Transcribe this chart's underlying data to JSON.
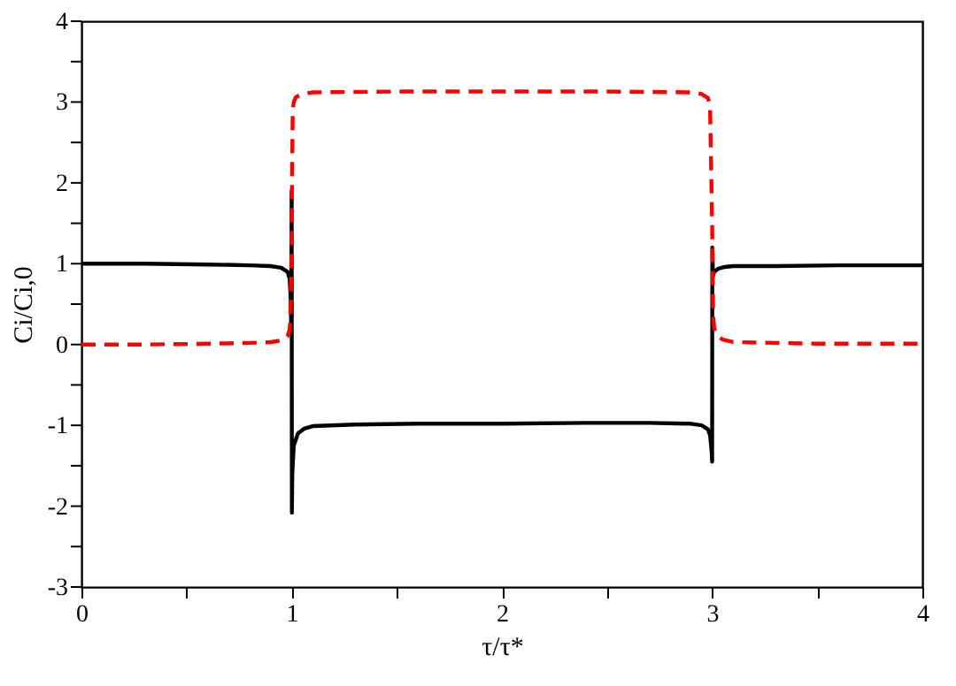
{
  "chart_data": {
    "type": "line",
    "xlabel": "τ/τ*",
    "ylabel": "Ci/Ci,0",
    "xlim": [
      0,
      4
    ],
    "ylim": [
      -3,
      4
    ],
    "xticks": [
      0,
      {
        "value": 0.5,
        "label": null
      },
      1,
      {
        "value": 1.5,
        "label": null
      },
      2,
      {
        "value": 2.5,
        "label": null
      },
      3,
      {
        "value": 3.5,
        "label": null
      },
      4
    ],
    "yticks": [
      -3,
      {
        "value": -2.5,
        "label": null
      },
      -2,
      {
        "value": -1.5,
        "label": null
      },
      -1,
      {
        "value": -0.5,
        "label": null
      },
      0,
      {
        "value": 0.5,
        "label": null
      },
      1,
      {
        "value": 1.5,
        "label": null
      },
      2,
      {
        "value": 2.5,
        "label": null
      },
      3,
      {
        "value": 3.5,
        "label": null
      },
      4
    ],
    "grid": false,
    "marker": "none",
    "series": [
      {
        "color": "#000000",
        "line_style": "solid",
        "x": [
          0,
          0.3,
          0.6,
          0.8,
          0.9,
          0.95,
          0.98,
          0.99,
          0.995,
          0.998,
          1.0,
          1.001,
          1.003,
          1.01,
          1.03,
          1.06,
          1.1,
          1.3,
          1.6,
          2.0,
          2.4,
          2.7,
          2.9,
          2.95,
          2.98,
          2.99,
          2.997,
          3.0,
          3.001,
          3.004,
          3.01,
          3.03,
          3.06,
          3.1,
          3.3,
          3.6,
          4.0
        ],
        "values": [
          1.0,
          1.0,
          0.99,
          0.98,
          0.97,
          0.95,
          0.9,
          0.82,
          0.6,
          0.2,
          1.9,
          -2.08,
          -1.6,
          -1.25,
          -1.1,
          -1.04,
          -1.01,
          -0.99,
          -0.98,
          -0.98,
          -0.97,
          -0.97,
          -0.98,
          -1.0,
          -1.05,
          -1.12,
          -1.3,
          -1.45,
          1.2,
          0.85,
          0.9,
          0.94,
          0.96,
          0.97,
          0.97,
          0.98,
          0.98
        ]
      },
      {
        "color": "#ff0000",
        "line_style": "dashed",
        "x": [
          0,
          0.3,
          0.6,
          0.8,
          0.9,
          0.95,
          0.98,
          0.99,
          0.995,
          1.0,
          1.005,
          1.01,
          1.02,
          1.05,
          1.1,
          1.5,
          2.0,
          2.5,
          2.9,
          2.95,
          2.98,
          2.99,
          3.0,
          3.005,
          3.01,
          3.02,
          3.05,
          3.1,
          3.5,
          4.0
        ],
        "values": [
          0.0,
          0.0,
          0.01,
          0.02,
          0.03,
          0.05,
          0.1,
          0.18,
          0.35,
          1.5,
          2.9,
          3.0,
          3.06,
          3.1,
          3.12,
          3.13,
          3.13,
          3.13,
          3.12,
          3.1,
          3.05,
          2.95,
          1.5,
          0.35,
          0.2,
          0.12,
          0.06,
          0.03,
          0.01,
          0.01
        ]
      }
    ]
  }
}
